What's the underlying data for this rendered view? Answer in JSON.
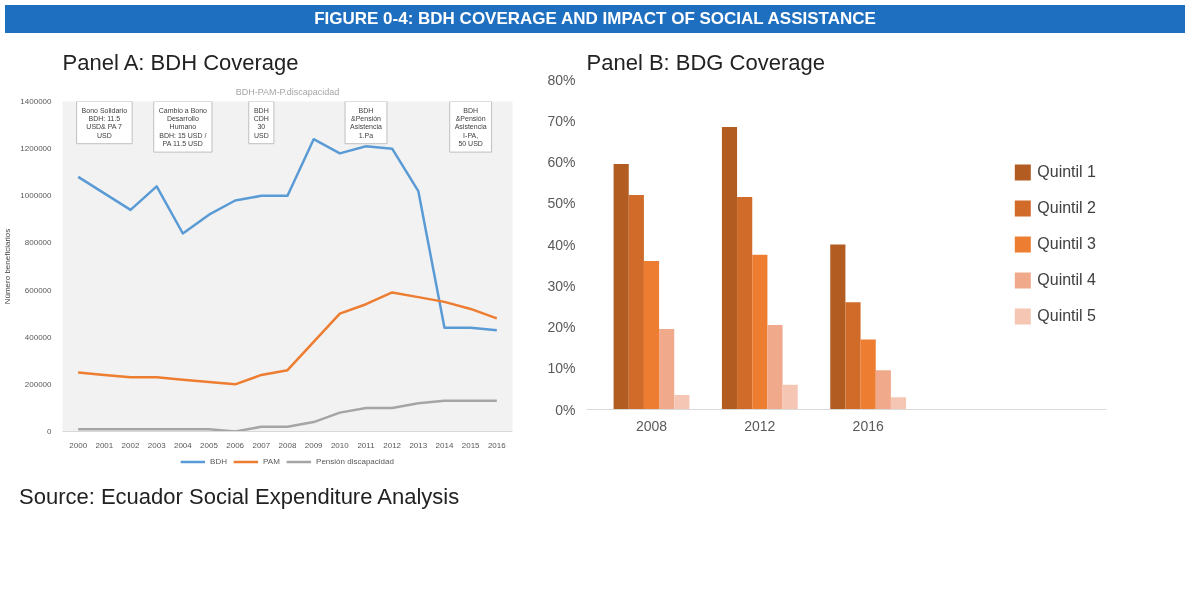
{
  "chart_data": [
    {
      "type": "line",
      "title": "Panel A: BDH Coverage",
      "subtitle": "BDH-PAM-P.discapacidad",
      "ylabel": "Número beneficiarios",
      "categories": [
        "2000",
        "2001",
        "2002",
        "2003",
        "2004",
        "2005",
        "2006",
        "2007",
        "2008",
        "2009",
        "2010",
        "2011",
        "2012",
        "2013",
        "2014",
        "2015",
        "2016"
      ],
      "series": [
        {
          "name": "BDH",
          "color": "#5b9bd5",
          "values": [
            1080000,
            1010000,
            940000,
            1040000,
            840000,
            920000,
            980000,
            1000000,
            1000000,
            1240000,
            1180000,
            1210000,
            1200000,
            1020000,
            440000,
            440000,
            430000
          ]
        },
        {
          "name": "PAM",
          "color": "#ed7d31",
          "values": [
            250000,
            240000,
            230000,
            230000,
            220000,
            210000,
            200000,
            240000,
            260000,
            380000,
            500000,
            540000,
            590000,
            570000,
            550000,
            520000,
            480000
          ]
        },
        {
          "name": "Pensión discapacidad",
          "color": "#a5a5a5",
          "values": [
            10000,
            10000,
            10000,
            10000,
            10000,
            10000,
            0,
            20000,
            20000,
            40000,
            80000,
            100000,
            100000,
            120000,
            130000,
            130000,
            130000
          ]
        }
      ],
      "ylim": [
        0,
        1400000
      ],
      "yticks": [
        0,
        200000,
        400000,
        600000,
        800000,
        1000000,
        1200000,
        1400000
      ],
      "grid": false,
      "legend": "bottom",
      "line_style": "solid",
      "marker": "none",
      "annotations": [
        "FIGURE 0-4: BDH COVERAGE AND IMPACT OF SOCIAL ASSISTANCE",
        "Bono Solidario\nBDH: 11.5\nUSD& PA 7\nUSD",
        "Cambio a Bono\nDesarrollo\nHumano\nBDH: 15 USD /\nPA 11.5 USD",
        "BDH\nCDH\n30\nUSD",
        "BDH\n&Pensión\nAsistencia\n1.Pa",
        "BDH\n&Pensión\nAsistencia\nI-PA,\n50 USD"
      ]
    },
    {
      "type": "bar",
      "title": "Panel B: BDG Coverage",
      "categories": [
        "2008",
        "2012",
        "2016"
      ],
      "series": [
        {
          "name": "Quintil 1",
          "color": "#b35c22",
          "values": [
            59.5,
            68.5,
            40
          ]
        },
        {
          "name": "Quintil 2",
          "color": "#d06b2a",
          "values": [
            52,
            51.5,
            26
          ]
        },
        {
          "name": "Quintil 3",
          "color": "#ed7d31",
          "values": [
            36,
            37.5,
            17
          ]
        },
        {
          "name": "Quintil 4",
          "color": "#f0a98a",
          "values": [
            19.5,
            20.5,
            9.5
          ]
        },
        {
          "name": "Quintil 5",
          "color": "#f5c6b3",
          "values": [
            3.5,
            6,
            3
          ]
        }
      ],
      "ylim": [
        0,
        80
      ],
      "yticks": [
        {
          "value": 0,
          "label": "0%"
        },
        {
          "value": 10,
          "label": "10%"
        },
        {
          "value": 20,
          "label": "20%"
        },
        {
          "value": 30,
          "label": "30%"
        },
        {
          "value": 40,
          "label": "40%"
        },
        {
          "value": 50,
          "label": "50%"
        },
        {
          "value": 60,
          "label": "60%"
        },
        {
          "value": 70,
          "label": "70%"
        },
        {
          "value": 80,
          "label": "80%"
        }
      ],
      "grid": false,
      "legend": "right",
      "annotations": [
        "Source: Ecuador Social Expenditure Analysis"
      ]
    }
  ]
}
